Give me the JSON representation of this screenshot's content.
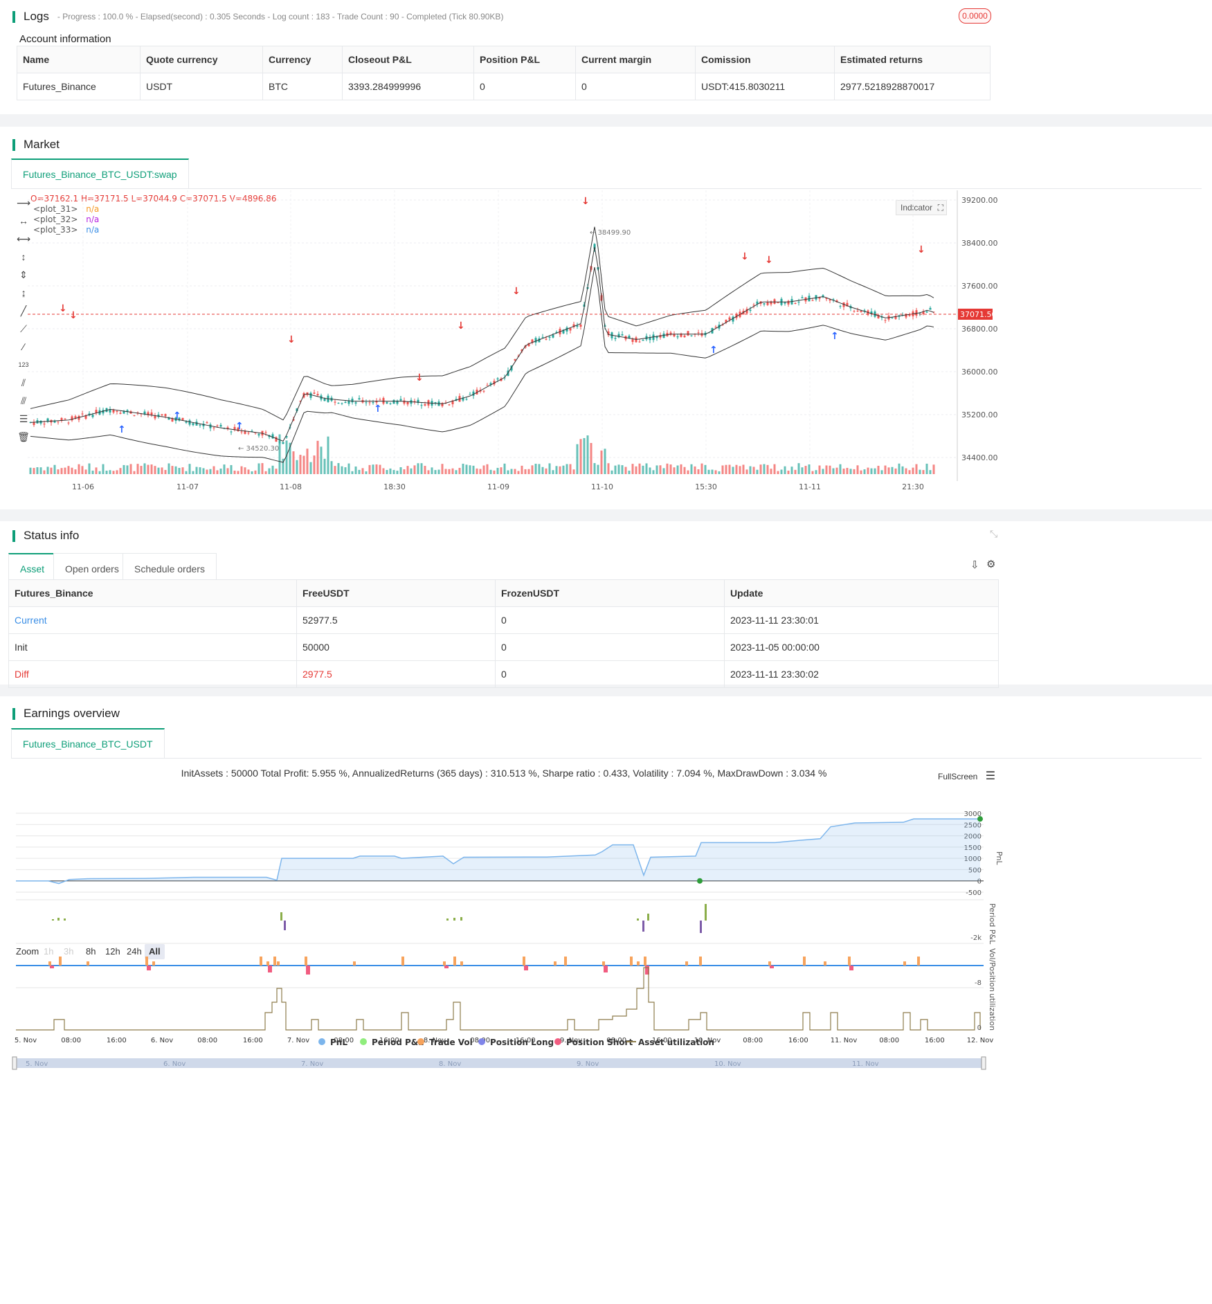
{
  "logs": {
    "title": "Logs",
    "status": "- Progress : 100.0 % - Elapsed(second) : 0.305  Seconds - Log count : 183 - Trade Count : 90 - Completed (Tick 80.90KB)",
    "badge": "0.0000"
  },
  "account": {
    "title": "Account information",
    "headers": [
      "Name",
      "Quote currency",
      "Currency",
      "Closeout P&L",
      "Position P&L",
      "Current margin",
      "Comission",
      "Estimated returns"
    ],
    "row": [
      "Futures_Binance",
      "USDT",
      "BTC",
      "3393.284999996",
      "0",
      "0",
      "USDT:415.8030211",
      "2977.5218928870017"
    ]
  },
  "market": {
    "title": "Market",
    "tab": "Futures_Binance_BTC_USDT:swap",
    "ohlc": {
      "o_label": "O=",
      "o": "37162.1",
      "h_label": "H=",
      "h": "37171.5",
      "l_label": "L=",
      "l": "37044.9",
      "c_label": "C=",
      "c": "37071.5",
      "v_label": "V=",
      "v": "4896.86"
    },
    "plots": [
      {
        "name": "<plot_31>",
        "value": "n/a",
        "color": "#f59a23"
      },
      {
        "name": "<plot_32>",
        "value": "n/a",
        "color": "#b620e0"
      },
      {
        "name": "<plot_33>",
        "value": "n/a",
        "color": "#3a8ee6"
      }
    ],
    "indicator_button": "Indicator",
    "price_axis": [
      "39200.00",
      "38400.00",
      "37600.00",
      "36800.00",
      "36000.00",
      "35200.00",
      "34400.00"
    ],
    "last_price": "37071.50",
    "high_marker": "38499.90",
    "low_marker": "34520.30",
    "time_axis": [
      "11-06",
      "11-07",
      "11-08",
      "18:30",
      "11-09",
      "11-10",
      "15:30",
      "11-11",
      "21:30"
    ],
    "up_color": "#26a69a",
    "down_color": "#ef5350"
  },
  "status": {
    "title": "Status info",
    "tabs": [
      "Asset",
      "Open orders",
      "Schedule orders"
    ],
    "headers": [
      "Futures_Binance",
      "FreeUSDT",
      "FrozenUSDT",
      "Update"
    ],
    "rows": [
      [
        "Current",
        "52977.5",
        "0",
        "2023-11-11 23:30:01"
      ],
      [
        "Init",
        "50000",
        "0",
        "2023-11-05 00:00:00"
      ],
      [
        "Diff",
        "2977.5",
        "0",
        "2023-11-11 23:30:02"
      ]
    ]
  },
  "earnings": {
    "title": "Earnings overview",
    "tab": "Futures_Binance_BTC_USDT",
    "summary": "InitAssets : 50000 Total Profit: 5.955 %, AnnualizedReturns (365 days) : 310.513 %, Sharpe ratio : 0.433, Volatility : 7.094 %, MaxDrawDown : 3.034 %",
    "fullscreen": "FullScreen",
    "zoom_label": "Zoom",
    "zoom_buttons": [
      "1h",
      "3h",
      "8h",
      "12h",
      "24h",
      "All"
    ],
    "pnl_axis": [
      "3000",
      "2500",
      "2000",
      "1500",
      "1000",
      "500",
      "0",
      "-500"
    ],
    "pnl_label": "PnL",
    "period_label": "Period P&L",
    "period_axis": "-2k",
    "vol_label": "Vol/Position",
    "vol_axis": "-8",
    "util_label": "utilization",
    "util_axis": "0",
    "time_axis": [
      "5. Nov",
      "08:00",
      "16:00",
      "6. Nov",
      "08:00",
      "16:00",
      "7. Nov",
      "08:00",
      "16:00",
      "8. Nov",
      "08:00",
      "16:00",
      "9. Nov",
      "08:00",
      "16:00",
      "10. Nov",
      "08:00",
      "16:00",
      "11. Nov",
      "08:00",
      "16:00",
      "12. Nov"
    ],
    "legend": [
      {
        "label": "PnL",
        "color": "#7cb5ec"
      },
      {
        "label": "Period P&L",
        "color": "#90ed7d"
      },
      {
        "label": "Trade Vol",
        "color": "#f7a35c"
      },
      {
        "label": "Position Long",
        "color": "#8085e9"
      },
      {
        "label": "Position Short",
        "color": "#f15c80"
      },
      {
        "label": "Asset utilization",
        "color": "#8d7b4a"
      }
    ],
    "navigator_labels": [
      "5. Nov",
      "6. Nov",
      "7. Nov",
      "8. Nov",
      "9. Nov",
      "10. Nov",
      "11. Nov"
    ]
  }
}
